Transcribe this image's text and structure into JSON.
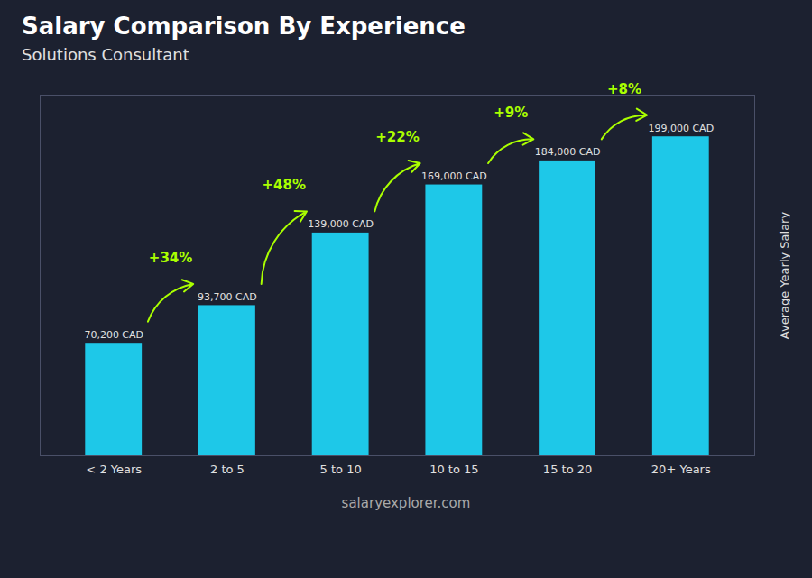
{
  "chart_data": {
    "type": "bar",
    "title": "Salary Comparison By Experience",
    "subtitle": "Solutions Consultant",
    "ylabel": "Average Yearly Salary",
    "caption": "salaryexplorer.com",
    "categories": [
      "< 2 Years",
      "2 to 5",
      "5 to 10",
      "10 to 15",
      "15 to 20",
      "20+ Years"
    ],
    "values": [
      70200,
      93700,
      139000,
      169000,
      184000,
      199000
    ],
    "value_labels": [
      "70,200 CAD",
      "93,700 CAD",
      "139,000 CAD",
      "169,000 CAD",
      "184,000 CAD",
      "199,000 CAD"
    ],
    "data_labels": true,
    "color": "#1ec8e8",
    "ylim": [
      0,
      225000
    ],
    "tick_labels": "x",
    "grid": false,
    "annotations": [
      {
        "text": "+34%",
        "from": "< 2 Years",
        "to": "2 to 5",
        "color": "#aaff00"
      },
      {
        "text": "+48%",
        "from": "2 to 5",
        "to": "5 to 10",
        "color": "#aaff00"
      },
      {
        "text": "+22%",
        "from": "5 to 10",
        "to": "10 to 15",
        "color": "#aaff00"
      },
      {
        "text": "+9%",
        "from": "10 to 15",
        "to": "15 to 20",
        "color": "#aaff00"
      },
      {
        "text": "+8%",
        "from": "15 to 20",
        "to": "20+ Years",
        "color": "#aaff00"
      }
    ]
  }
}
